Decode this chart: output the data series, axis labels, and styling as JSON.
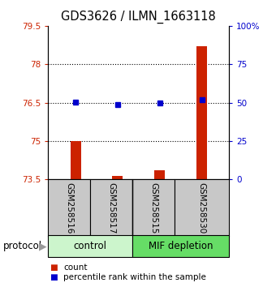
{
  "title": "GDS3626 / ILMN_1663118",
  "samples": [
    "GSM258516",
    "GSM258517",
    "GSM258515",
    "GSM258530"
  ],
  "red_values": [
    75.0,
    73.65,
    73.85,
    78.7
  ],
  "blue_values": [
    76.52,
    76.42,
    76.5,
    76.62
  ],
  "ylim_left": [
    73.5,
    79.5
  ],
  "ylim_right": [
    0,
    100
  ],
  "yticks_left": [
    73.5,
    75.0,
    76.5,
    78.0,
    79.5
  ],
  "ytick_labels_left": [
    "73.5",
    "75",
    "76.5",
    "78",
    "79.5"
  ],
  "yticks_right": [
    0,
    25,
    50,
    75,
    100
  ],
  "ytick_labels_right": [
    "0",
    "25",
    "50",
    "75",
    "100%"
  ],
  "dotted_lines": [
    75.0,
    76.5,
    78.0
  ],
  "bar_color": "#cc2200",
  "dot_color": "#0000cc",
  "sample_box_color": "#c8c8c8",
  "control_color": "#ccf5cc",
  "mif_color": "#66dd66",
  "legend_items": [
    "count",
    "percentile rank within the sample"
  ],
  "bar_width": 0.25
}
